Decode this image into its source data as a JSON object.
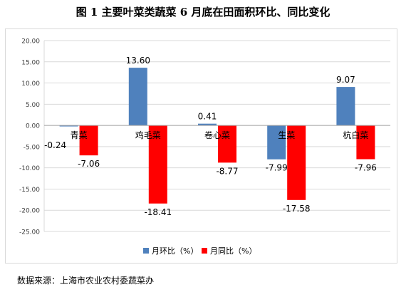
{
  "title": "图 1  主要叶菜类蔬菜 6 月底在田面积环比、同比变化",
  "source": "数据来源：上海市农业农村委蔬菜办",
  "colors": {
    "series1": "#4f81bd",
    "series2": "#ff0000",
    "grid": "#d9d9d9",
    "axis": "#404040"
  },
  "chart_data": {
    "type": "bar",
    "categories": [
      "青菜",
      "鸡毛菜",
      "卷心菜",
      "生菜",
      "杭白菜"
    ],
    "series": [
      {
        "name": "月环比（%）",
        "values": [
          -0.24,
          13.6,
          0.41,
          -7.99,
          9.07
        ]
      },
      {
        "name": "月同比（%）",
        "values": [
          -7.06,
          -18.41,
          -8.77,
          -17.58,
          -7.96
        ]
      }
    ],
    "data_labels": [
      [
        "-0.24",
        "13.60",
        "0.41",
        "-7.99",
        "9.07"
      ],
      [
        "-7.06",
        "-18.41",
        "-8.77",
        "-17.58",
        "-7.96"
      ]
    ],
    "ylim": [
      -25,
      20
    ],
    "yticks": [
      "20.00",
      "15.00",
      "10.00",
      "5.00",
      "0.00",
      "-5.00",
      "-10.00",
      "-15.00",
      "-20.00",
      "-25.00"
    ],
    "grid": true,
    "legend": "bottom"
  }
}
